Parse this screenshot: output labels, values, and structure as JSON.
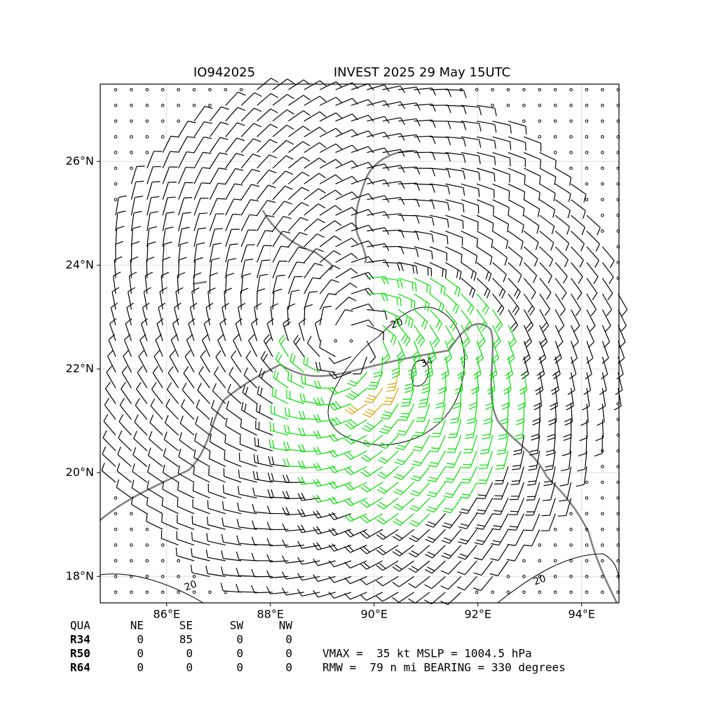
{
  "header": {
    "left": "IO942025",
    "right": "INVEST 2025 29 May 15UTC"
  },
  "chart_data": {
    "type": "wind-barbs",
    "xlim": [
      84.72,
      94.72
    ],
    "ylim": [
      17.49,
      27.49
    ],
    "xticks": [
      {
        "value": 86,
        "label": "86°E"
      },
      {
        "value": 88,
        "label": "88°E"
      },
      {
        "value": 90,
        "label": "90°E"
      },
      {
        "value": 92,
        "label": "92°E"
      },
      {
        "value": 94,
        "label": "94°E"
      }
    ],
    "yticks": [
      {
        "value": 18,
        "label": "18°N"
      },
      {
        "value": 20,
        "label": "20°N"
      },
      {
        "value": 22,
        "label": "22°N"
      },
      {
        "value": 24,
        "label": "24°N"
      },
      {
        "value": 26,
        "label": "26°N"
      }
    ],
    "grid": true,
    "contour_labels": [
      "20",
      "34",
      "20",
      "20"
    ]
  },
  "table": {
    "header": [
      "QUA",
      "NE",
      "SE",
      "SW",
      "NW"
    ],
    "rows": [
      [
        "R34",
        "0",
        "85",
        "0",
        "0"
      ],
      [
        "R50",
        "0",
        "0",
        "0",
        "0"
      ],
      [
        "R64",
        "0",
        "0",
        "0",
        "0"
      ]
    ]
  },
  "info": [
    "VMAX =  35 kt MSLP = 1004.5 hPa",
    "RMW =  79 n mi BEARING = 330 degrees"
  ]
}
